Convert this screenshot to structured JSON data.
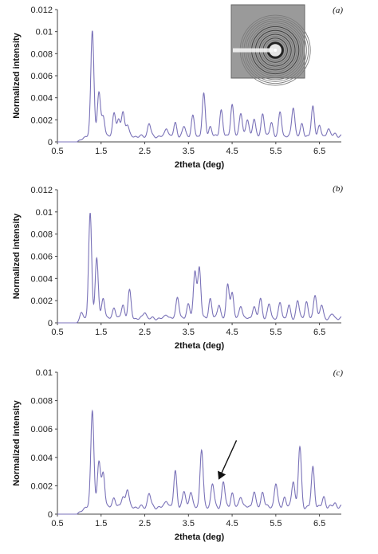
{
  "chart_data": [
    {
      "type": "line",
      "panel_label": "(a)",
      "xlabel": "2theta (deg)",
      "ylabel": "Normalized intensity",
      "xlim": [
        0.5,
        7.0
      ],
      "ylim": [
        0,
        0.012
      ],
      "x_ticks": [
        "0.5",
        "1.5",
        "2.5",
        "3.5",
        "4.5",
        "5.5",
        "6.5"
      ],
      "y_ticks": [
        "0",
        "0.002",
        "0.004",
        "0.006",
        "0.008",
        "0.01",
        "0.012"
      ],
      "inset": "diffraction-pattern",
      "peaks": [
        [
          1.3,
          0.0102
        ],
        [
          1.45,
          0.0045
        ],
        [
          1.55,
          0.0024
        ],
        [
          1.8,
          0.0027
        ],
        [
          1.9,
          0.0019
        ],
        [
          2.0,
          0.0027
        ],
        [
          2.1,
          0.0016
        ],
        [
          2.6,
          0.0017
        ],
        [
          3.0,
          0.0013
        ],
        [
          3.2,
          0.0017
        ],
        [
          3.4,
          0.0014
        ],
        [
          3.6,
          0.0023
        ],
        [
          3.85,
          0.0043
        ],
        [
          4.0,
          0.0014
        ],
        [
          4.25,
          0.0029
        ],
        [
          4.5,
          0.0034
        ],
        [
          4.7,
          0.0027
        ],
        [
          4.85,
          0.002
        ],
        [
          5.0,
          0.0021
        ],
        [
          5.2,
          0.0026
        ],
        [
          5.4,
          0.0018
        ],
        [
          5.6,
          0.0027
        ],
        [
          5.9,
          0.0032
        ],
        [
          6.1,
          0.0016
        ],
        [
          6.35,
          0.0032
        ],
        [
          6.5,
          0.0014
        ],
        [
          6.7,
          0.0012
        ],
        [
          6.85,
          0.0008
        ]
      ],
      "baseline": 0.0005
    },
    {
      "type": "line",
      "panel_label": "(b)",
      "xlabel": "2theta (deg)",
      "ylabel": "Normalized intensity",
      "xlim": [
        0.5,
        7.0
      ],
      "ylim": [
        0,
        0.012
      ],
      "x_ticks": [
        "0.5",
        "1.5",
        "2.5",
        "3.5",
        "4.5",
        "5.5",
        "6.5"
      ],
      "y_ticks": [
        "0",
        "0.002",
        "0.004",
        "0.006",
        "0.008",
        "0.01",
        "0.012"
      ],
      "peaks": [
        [
          1.05,
          0.0012
        ],
        [
          1.25,
          0.0098
        ],
        [
          1.4,
          0.0058
        ],
        [
          1.55,
          0.0023
        ],
        [
          1.8,
          0.0014
        ],
        [
          2.0,
          0.0016
        ],
        [
          2.15,
          0.0029
        ],
        [
          2.5,
          0.001
        ],
        [
          3.0,
          0.0008
        ],
        [
          3.25,
          0.0024
        ],
        [
          3.5,
          0.0018
        ],
        [
          3.65,
          0.0046
        ],
        [
          3.75,
          0.005
        ],
        [
          4.0,
          0.0022
        ],
        [
          4.2,
          0.0017
        ],
        [
          4.4,
          0.0034
        ],
        [
          4.5,
          0.0027
        ],
        [
          4.7,
          0.0016
        ],
        [
          5.0,
          0.0015
        ],
        [
          5.15,
          0.0022
        ],
        [
          5.35,
          0.0017
        ],
        [
          5.6,
          0.0018
        ],
        [
          5.8,
          0.0015
        ],
        [
          6.0,
          0.002
        ],
        [
          6.2,
          0.0019
        ],
        [
          6.4,
          0.0026
        ],
        [
          6.55,
          0.0016
        ],
        [
          6.8,
          0.0008
        ]
      ],
      "baseline": 0.0004
    },
    {
      "type": "line",
      "panel_label": "(c)",
      "xlabel": "2theta (deg)",
      "ylabel": "Normalized intensity",
      "xlim": [
        0.5,
        7.0
      ],
      "ylim": [
        0,
        0.01
      ],
      "x_ticks": [
        "0.5",
        "1.5",
        "2.5",
        "3.5",
        "4.5",
        "5.5",
        "6.5"
      ],
      "y_ticks": [
        "0",
        "0.002",
        "0.004",
        "0.006",
        "0.008",
        "0.01"
      ],
      "annotation": "arrow",
      "arrow_from": [
        4.6,
        0.0052
      ],
      "arrow_to": [
        4.2,
        0.0025
      ],
      "peaks": [
        [
          1.3,
          0.0074
        ],
        [
          1.45,
          0.0037
        ],
        [
          1.55,
          0.003
        ],
        [
          1.8,
          0.0012
        ],
        [
          2.0,
          0.0012
        ],
        [
          2.1,
          0.0018
        ],
        [
          2.6,
          0.0015
        ],
        [
          3.0,
          0.001
        ],
        [
          3.2,
          0.003
        ],
        [
          3.4,
          0.0016
        ],
        [
          3.55,
          0.0016
        ],
        [
          3.8,
          0.0046
        ],
        [
          4.05,
          0.0022
        ],
        [
          4.3,
          0.0023
        ],
        [
          4.5,
          0.0015
        ],
        [
          4.7,
          0.0013
        ],
        [
          5.0,
          0.0016
        ],
        [
          5.2,
          0.0016
        ],
        [
          5.5,
          0.0022
        ],
        [
          5.7,
          0.0012
        ],
        [
          5.9,
          0.0024
        ],
        [
          6.05,
          0.0047
        ],
        [
          6.35,
          0.0033
        ],
        [
          6.6,
          0.0012
        ],
        [
          6.85,
          0.0008
        ]
      ],
      "baseline": 0.0005
    }
  ]
}
